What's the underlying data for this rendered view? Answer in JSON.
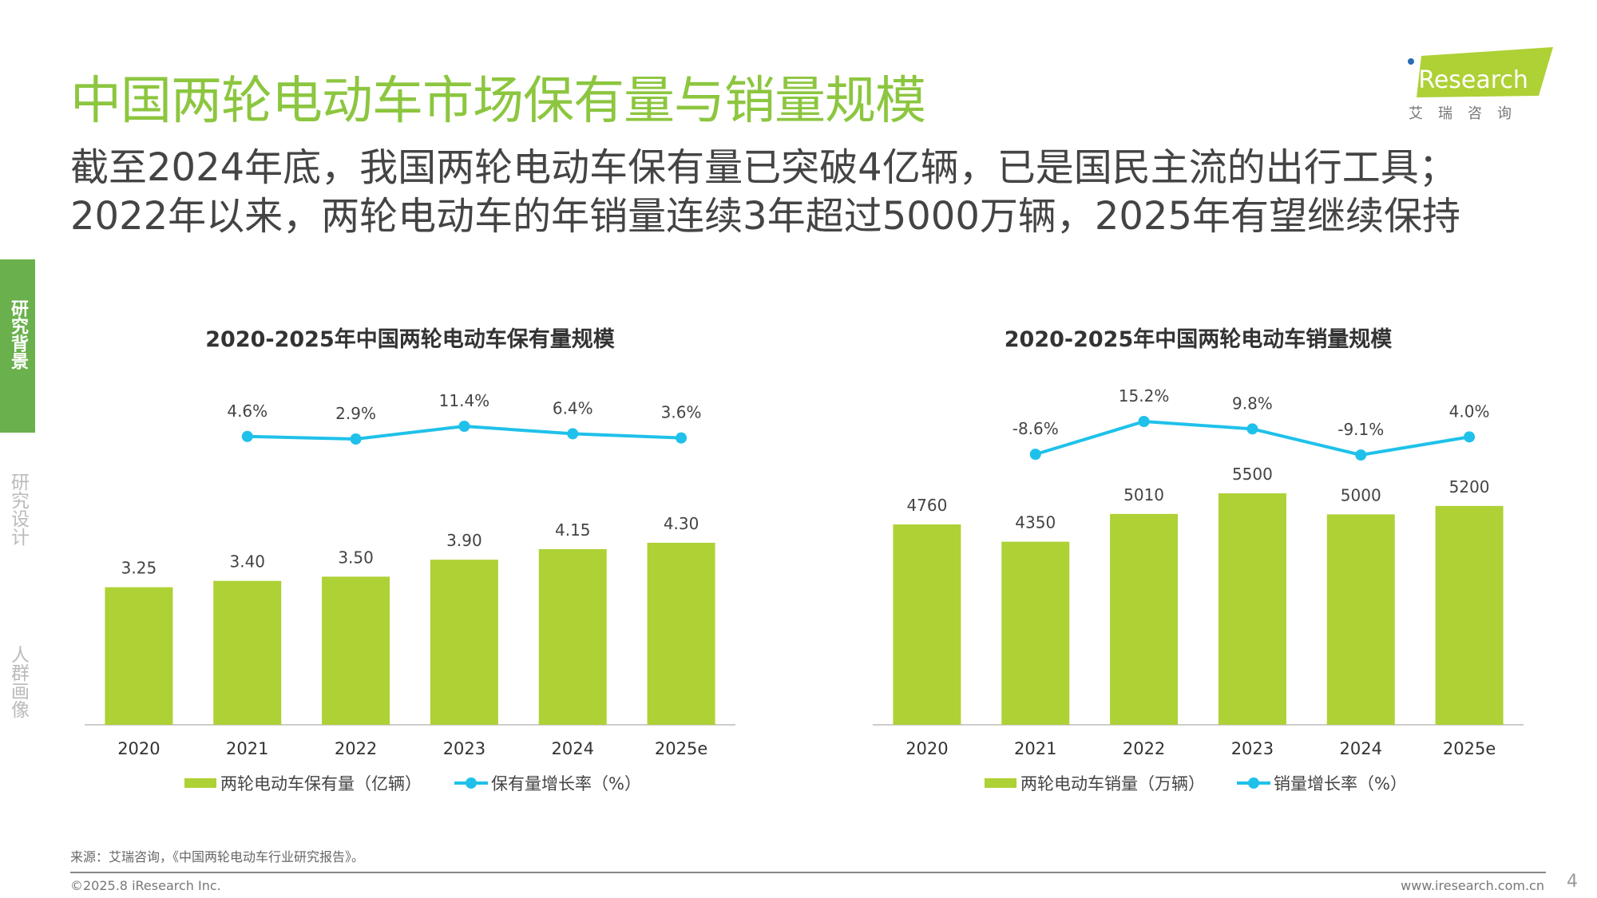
{
  "header": {
    "title": "中国两轮电动车市场保有量与销量规模",
    "subtitle_lines": [
      "截至2024年底，我国两轮电动车保有量已突破4亿辆，已是国民主流的出行工具；",
      "2022年以来，两轮电动车的年销量连续3年超过5000万辆，2025年有望继续保持"
    ]
  },
  "logo": {
    "text": "iResearch",
    "cn": "艾 瑞 咨 询"
  },
  "sidebar": {
    "items": [
      {
        "label": "研究背景",
        "active": true
      },
      {
        "label": "研究设计"
      },
      {
        "label": "人群画像"
      }
    ]
  },
  "colors": {
    "bar": "#aed136",
    "line": "#1fc1ea",
    "title": "#8cc63f",
    "sidebar": "#6ab04c"
  },
  "chart_data": [
    {
      "type": "bar",
      "title": "2020-2025年中国两轮电动车保有量规模",
      "categories": [
        "2020",
        "2021",
        "2022",
        "2023",
        "2024",
        "2025e"
      ],
      "series": [
        {
          "name": "两轮电动车保有量（亿辆）",
          "type": "bar",
          "values": [
            3.25,
            3.4,
            3.5,
            3.9,
            4.15,
            4.3
          ],
          "labels": [
            "3.25",
            "3.40",
            "3.50",
            "3.90",
            "4.15",
            "4.30"
          ]
        },
        {
          "name": "保有量增长率（%）",
          "type": "line",
          "values": [
            null,
            4.6,
            2.9,
            11.4,
            6.4,
            3.6
          ],
          "labels": [
            "",
            "4.6%",
            "2.9%",
            "11.4%",
            "6.4%",
            "3.6%"
          ]
        }
      ],
      "legend": "bottom",
      "grid": false
    },
    {
      "type": "bar",
      "title": "2020-2025年中国两轮电动车销量规模",
      "categories": [
        "2020",
        "2021",
        "2022",
        "2023",
        "2024",
        "2025e"
      ],
      "series": [
        {
          "name": "两轮电动车销量（万辆）",
          "type": "bar",
          "values": [
            4760,
            4350,
            5010,
            5500,
            5000,
            5200
          ],
          "labels": [
            "4760",
            "4350",
            "5010",
            "5500",
            "5000",
            "5200"
          ]
        },
        {
          "name": "销量增长率（%）",
          "type": "line",
          "values": [
            null,
            -8.6,
            15.2,
            9.8,
            -9.1,
            4.0
          ],
          "labels": [
            "",
            "-8.6%",
            "15.2%",
            "9.8%",
            "-9.1%",
            "4.0%"
          ]
        }
      ],
      "legend": "bottom",
      "grid": false
    }
  ],
  "footer": {
    "source": "来源：艾瑞咨询，《中国两轮电动车行业研究报告》。",
    "copyright": "©2025.8 iResearch Inc.",
    "url": "www.iresearch.com.cn",
    "page": "4"
  }
}
